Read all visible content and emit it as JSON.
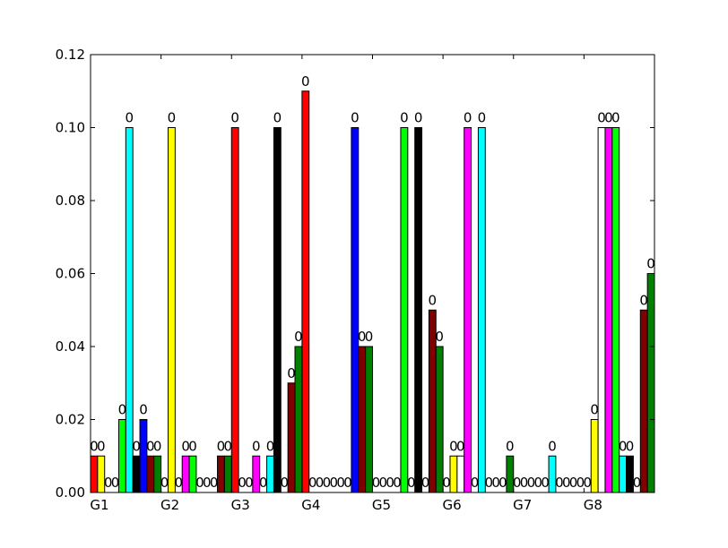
{
  "chart_data": {
    "type": "bar",
    "title": "",
    "xlabel": "",
    "ylabel": "",
    "ylim": [
      0,
      0.12
    ],
    "yticks": [
      "0.00",
      "0.02",
      "0.04",
      "0.06",
      "0.08",
      "0.10",
      "0.12"
    ],
    "grid": false,
    "legend": "none",
    "categories": [
      "G1",
      "G2",
      "G3",
      "G4",
      "G5",
      "G6",
      "G7",
      "G8"
    ],
    "bar_label_text": "0",
    "series": [
      {
        "color": "#ff0000",
        "values": [
          0.01,
          0.0,
          0.1,
          0.11,
          0.0,
          0.0,
          0.0,
          0.0
        ]
      },
      {
        "color": "#ffff00",
        "values": [
          0.01,
          0.1,
          0.0,
          0.0,
          0.0,
          0.01,
          0.0,
          0.02
        ]
      },
      {
        "color": "#ffffff",
        "values": [
          0.0,
          0.0,
          0.0,
          0.0,
          0.0,
          0.01,
          0.0,
          0.1
        ]
      },
      {
        "color": "#ff00ff",
        "values": [
          0.0,
          0.01,
          0.01,
          0.0,
          0.0,
          0.1,
          0.0,
          0.1
        ]
      },
      {
        "color": "#00ff00",
        "values": [
          0.02,
          0.01,
          0.0,
          0.0,
          0.1,
          0.0,
          0.0,
          0.1
        ]
      },
      {
        "color": "#00ffff",
        "values": [
          0.1,
          0.0,
          0.01,
          0.0,
          0.0,
          0.1,
          0.01,
          0.01
        ]
      },
      {
        "color": "#000000",
        "values": [
          0.01,
          0.0,
          0.1,
          0.0,
          0.1,
          0.0,
          0.0,
          0.01
        ]
      },
      {
        "color": "#0000ff",
        "values": [
          0.02,
          0.0,
          0.0,
          0.1,
          0.0,
          0.0,
          0.0,
          0.0
        ]
      },
      {
        "color": "#800000",
        "values": [
          0.01,
          0.01,
          0.03,
          0.04,
          0.05,
          0.0,
          0.0,
          0.05
        ]
      },
      {
        "color": "#008000",
        "values": [
          0.01,
          0.01,
          0.04,
          0.04,
          0.04,
          0.01,
          0.0,
          0.06
        ]
      }
    ]
  }
}
